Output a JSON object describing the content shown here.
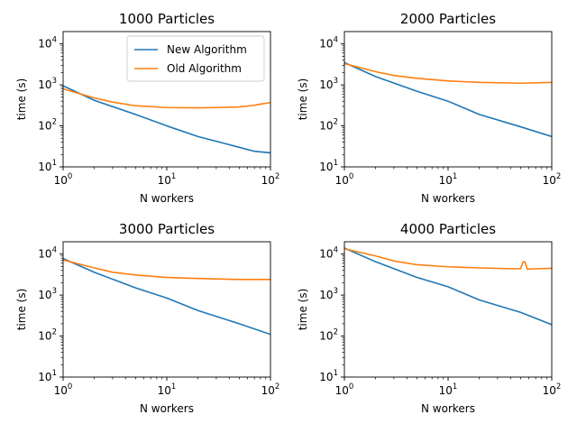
{
  "chart_data": [
    {
      "type": "line",
      "title": "1000 Particles",
      "xlabel": "N workers",
      "ylabel": "time (s)",
      "xscale": "log",
      "yscale": "log",
      "xlim": [
        1,
        100
      ],
      "ylim": [
        10,
        20000
      ],
      "legend": {
        "placement": "top-right"
      },
      "series": [
        {
          "name": "New Algorithm",
          "color": "#1f77b4",
          "x": [
            1,
            2,
            5,
            10,
            20,
            50,
            70,
            100
          ],
          "y": [
            950,
            420,
            190,
            100,
            55,
            30,
            24,
            22
          ]
        },
        {
          "name": "Old Algorithm",
          "color": "#ff7f0e",
          "x": [
            1,
            2,
            3,
            5,
            10,
            20,
            30,
            50,
            70,
            80,
            100
          ],
          "y": [
            800,
            480,
            380,
            310,
            280,
            275,
            280,
            290,
            320,
            340,
            370
          ]
        }
      ]
    },
    {
      "type": "line",
      "title": "2000 Particles",
      "xlabel": "N workers",
      "ylabel": "time (s)",
      "xscale": "log",
      "yscale": "log",
      "xlim": [
        1,
        100
      ],
      "ylim": [
        10,
        20000
      ],
      "series": [
        {
          "name": "New Algorithm",
          "color": "#1f77b4",
          "x": [
            1,
            2,
            5,
            10,
            20,
            50,
            100
          ],
          "y": [
            3500,
            1600,
            700,
            400,
            190,
            95,
            55
          ]
        },
        {
          "name": "Old Algorithm",
          "color": "#ff7f0e",
          "x": [
            1,
            2,
            3,
            5,
            10,
            20,
            50,
            100
          ],
          "y": [
            3300,
            2100,
            1700,
            1450,
            1250,
            1150,
            1100,
            1150
          ]
        }
      ]
    },
    {
      "type": "line",
      "title": "3000 Particles",
      "xlabel": "N workers",
      "ylabel": "time (s)",
      "xscale": "log",
      "yscale": "log",
      "xlim": [
        1,
        100
      ],
      "ylim": [
        10,
        20000
      ],
      "series": [
        {
          "name": "New Algorithm",
          "color": "#1f77b4",
          "x": [
            1,
            2,
            5,
            10,
            20,
            50,
            100
          ],
          "y": [
            7800,
            3600,
            1500,
            850,
            420,
            200,
            110
          ]
        },
        {
          "name": "Old Algorithm",
          "color": "#ff7f0e",
          "x": [
            1,
            2,
            3,
            5,
            10,
            20,
            50,
            100
          ],
          "y": [
            7200,
            4600,
            3600,
            3100,
            2700,
            2550,
            2400,
            2400
          ]
        }
      ]
    },
    {
      "type": "line",
      "title": "4000 Particles",
      "xlabel": "N workers",
      "ylabel": "time (s)",
      "xscale": "log",
      "yscale": "log",
      "xlim": [
        1,
        100
      ],
      "ylim": [
        10,
        20000
      ],
      "series": [
        {
          "name": "New Algorithm",
          "color": "#1f77b4",
          "x": [
            1,
            2,
            5,
            10,
            20,
            50,
            100
          ],
          "y": [
            14000,
            6500,
            2700,
            1600,
            760,
            380,
            190
          ]
        },
        {
          "name": "Old Algorithm",
          "color": "#ff7f0e",
          "x": [
            1,
            2,
            3,
            5,
            10,
            20,
            40,
            50,
            53,
            55,
            58,
            70,
            100
          ],
          "y": [
            13500,
            9000,
            6800,
            5500,
            4900,
            4600,
            4400,
            4400,
            6500,
            6500,
            4300,
            4400,
            4500
          ]
        }
      ]
    }
  ]
}
